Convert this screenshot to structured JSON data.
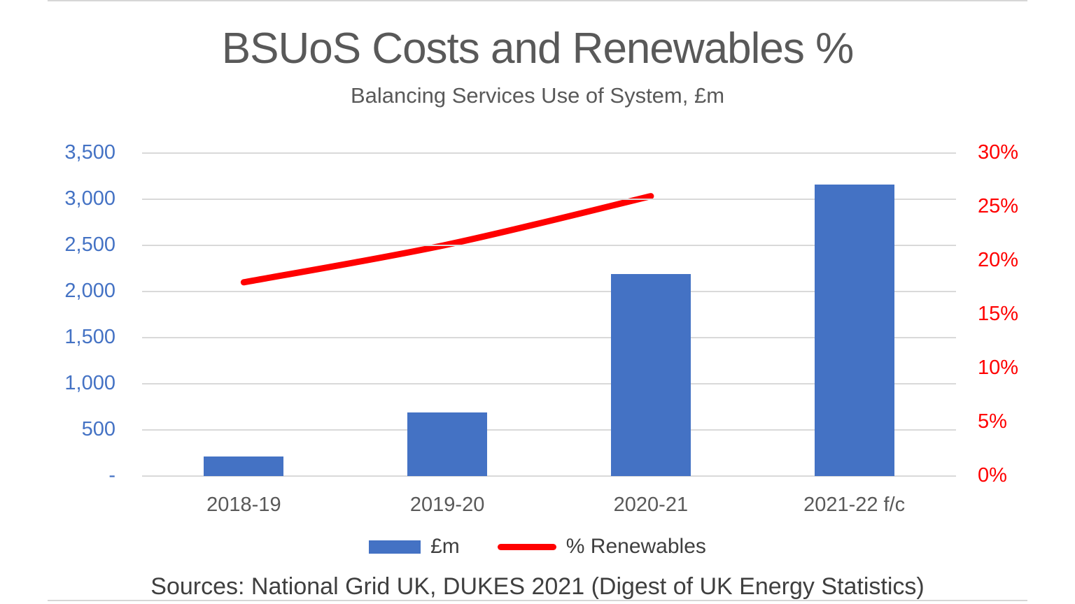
{
  "page": {
    "title": "BSUoS Costs and Renewables %",
    "subtitle": "Balancing Services Use of System, £m",
    "sources": "Sources: National Grid UK, DUKES 2021 (Digest of UK Energy Statistics)"
  },
  "legend": {
    "bars_label": "£m",
    "line_label": "% Renewables"
  },
  "colors": {
    "bar": "#4472C4",
    "line": "#FF0000",
    "left_axis_text": "#4472C4",
    "right_axis_text": "#FF0000",
    "title_text": "#595959",
    "x_axis_text": "#595959",
    "gridline": "#D9D9D9"
  },
  "chart_data": {
    "type": "combo-bar-line",
    "categories": [
      "2018-19",
      "2019-20",
      "2020-21",
      "2021-22 f/c"
    ],
    "series": [
      {
        "name": "£m",
        "type": "bar",
        "axis": "left",
        "values": [
          210,
          690,
          2190,
          3160
        ]
      },
      {
        "name": "% Renewables",
        "type": "line",
        "axis": "right",
        "values": [
          18,
          21.5,
          26,
          null
        ]
      }
    ],
    "title": "BSUoS Costs and Renewables %",
    "subtitle": "Balancing Services Use of System, £m",
    "left_axis": {
      "min": 0,
      "max": 3500,
      "tick_step": 500,
      "tick_labels_top_to_bottom": [
        "3,500",
        "3,000",
        "2,500",
        "2,000",
        "1,500",
        "1,000",
        "500",
        "-"
      ]
    },
    "right_axis": {
      "min": 0,
      "max": 30,
      "tick_step": 5,
      "tick_labels_top_to_bottom": [
        "30%",
        "25%",
        "20%",
        "15%",
        "10%",
        "5%",
        "0%"
      ]
    },
    "grid": true,
    "legend_position": "bottom"
  }
}
